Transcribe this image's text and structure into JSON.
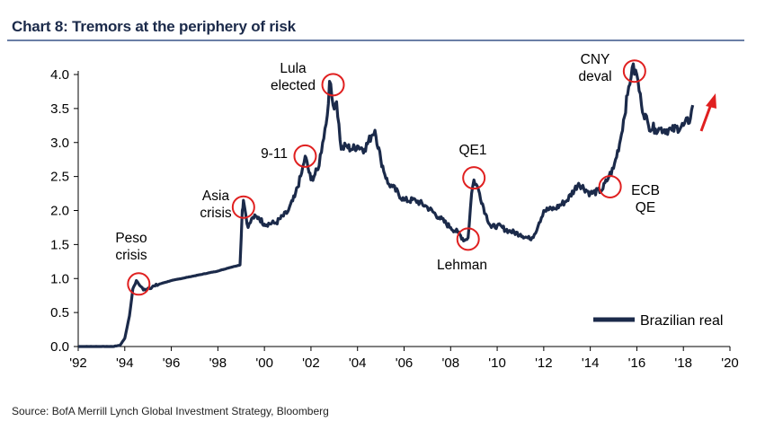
{
  "header": {
    "title": "Chart 8: Tremors at the periphery of risk"
  },
  "footer": {
    "source": "Source:  BofA Merrill Lynch Global Investment Strategy, Bloomberg"
  },
  "colors": {
    "series": "#1b2a4a",
    "circle": "#e02020",
    "arrow": "#e02020",
    "axis": "#000000"
  },
  "chart_data": {
    "type": "line",
    "title": "Chart 8: Tremors at the periphery of risk",
    "xlabel": "",
    "ylabel": "",
    "xlim": [
      1992,
      2020
    ],
    "ylim": [
      0,
      4.0
    ],
    "x_ticks": [
      1992,
      1994,
      1996,
      1998,
      2000,
      2002,
      2004,
      2006,
      2008,
      2010,
      2012,
      2014,
      2016,
      2018,
      2020
    ],
    "x_tick_labels": [
      "'92",
      "'94",
      "'96",
      "'98",
      "'00",
      "'02",
      "'04",
      "'06",
      "'08",
      "'10",
      "'12",
      "'14",
      "'16",
      "'18",
      "'20"
    ],
    "y_ticks": [
      0,
      0.5,
      1.0,
      1.5,
      2.0,
      2.5,
      3.0,
      3.5,
      4.0
    ],
    "y_tick_labels": [
      "0.0",
      "0.5",
      "1.0",
      "1.5",
      "2.0",
      "2.5",
      "3.0",
      "3.5",
      "4.0"
    ],
    "legend": {
      "position": "bottom-right",
      "entries": [
        "Brazilian real"
      ]
    },
    "series": [
      {
        "name": "Brazilian real",
        "x": [
          1992.0,
          1993.5,
          1993.8,
          1994.0,
          1994.2,
          1994.35,
          1994.5,
          1994.6,
          1994.7,
          1994.8,
          1995.0,
          1995.3,
          1995.5,
          1996.0,
          1997.0,
          1998.0,
          1998.5,
          1998.95,
          1999.05,
          1999.1,
          1999.3,
          1999.5,
          1999.75,
          2000.0,
          2000.5,
          2001.0,
          2001.3,
          2001.6,
          2001.75,
          2002.0,
          2002.3,
          2002.5,
          2002.7,
          2002.8,
          2002.95,
          2003.1,
          2003.3,
          2003.5,
          2003.75,
          2004.0,
          2004.3,
          2004.6,
          2004.75,
          2005.0,
          2005.3,
          2005.5,
          2006.0,
          2006.5,
          2007.0,
          2007.5,
          2008.0,
          2008.3,
          2008.6,
          2008.75,
          2008.9,
          2009.0,
          2009.2,
          2009.5,
          2009.75,
          2010.0,
          2010.5,
          2011.0,
          2011.4,
          2011.6,
          2011.8,
          2012.0,
          2012.5,
          2013.0,
          2013.5,
          2014.0,
          2014.5,
          2014.8,
          2015.0,
          2015.3,
          2015.6,
          2015.8,
          2016.0,
          2016.2,
          2016.5,
          2016.8,
          2017.0,
          2017.5,
          2018.0,
          2018.3,
          2018.4
        ],
        "values": [
          0.0,
          0.0,
          0.02,
          0.12,
          0.45,
          0.85,
          0.97,
          0.92,
          0.88,
          0.83,
          0.86,
          0.89,
          0.92,
          0.97,
          1.04,
          1.11,
          1.16,
          1.2,
          2.0,
          2.15,
          1.75,
          1.9,
          1.9,
          1.8,
          1.82,
          1.98,
          2.2,
          2.55,
          2.8,
          2.45,
          2.6,
          3.0,
          3.4,
          3.9,
          3.55,
          3.6,
          2.9,
          2.95,
          2.9,
          2.95,
          2.9,
          3.1,
          3.18,
          2.75,
          2.4,
          2.35,
          2.15,
          2.15,
          2.05,
          1.9,
          1.75,
          1.68,
          1.56,
          1.6,
          2.25,
          2.45,
          2.3,
          1.95,
          1.75,
          1.78,
          1.7,
          1.65,
          1.58,
          1.65,
          1.82,
          2.0,
          2.03,
          2.15,
          2.4,
          2.25,
          2.3,
          2.5,
          2.62,
          3.05,
          3.7,
          4.1,
          4.0,
          3.55,
          3.25,
          3.2,
          3.2,
          3.18,
          3.25,
          3.35,
          3.55
        ]
      }
    ],
    "annotations": [
      {
        "label_lines": [
          "Peso",
          "crisis"
        ],
        "x": 1994.6,
        "y": 0.92
      },
      {
        "label_lines": [
          "Asia",
          "crisis"
        ],
        "x": 1999.1,
        "y": 2.05
      },
      {
        "label_lines": [
          "9-11"
        ],
        "x": 2001.75,
        "y": 2.8
      },
      {
        "label_lines": [
          "Lula",
          "elected"
        ],
        "x": 2002.95,
        "y": 3.85
      },
      {
        "label_lines": [
          "QE1"
        ],
        "x": 2009.0,
        "y": 2.48
      },
      {
        "label_lines": [
          "Lehman"
        ],
        "x": 2008.75,
        "y": 1.58
      },
      {
        "label_lines": [
          "ECB",
          "QE"
        ],
        "x": 2014.85,
        "y": 2.35
      },
      {
        "label_lines": [
          "CNY",
          "deval"
        ],
        "x": 2015.9,
        "y": 4.05
      }
    ],
    "trend_arrow": {
      "direction": "up-right",
      "meaning": "rising"
    }
  }
}
